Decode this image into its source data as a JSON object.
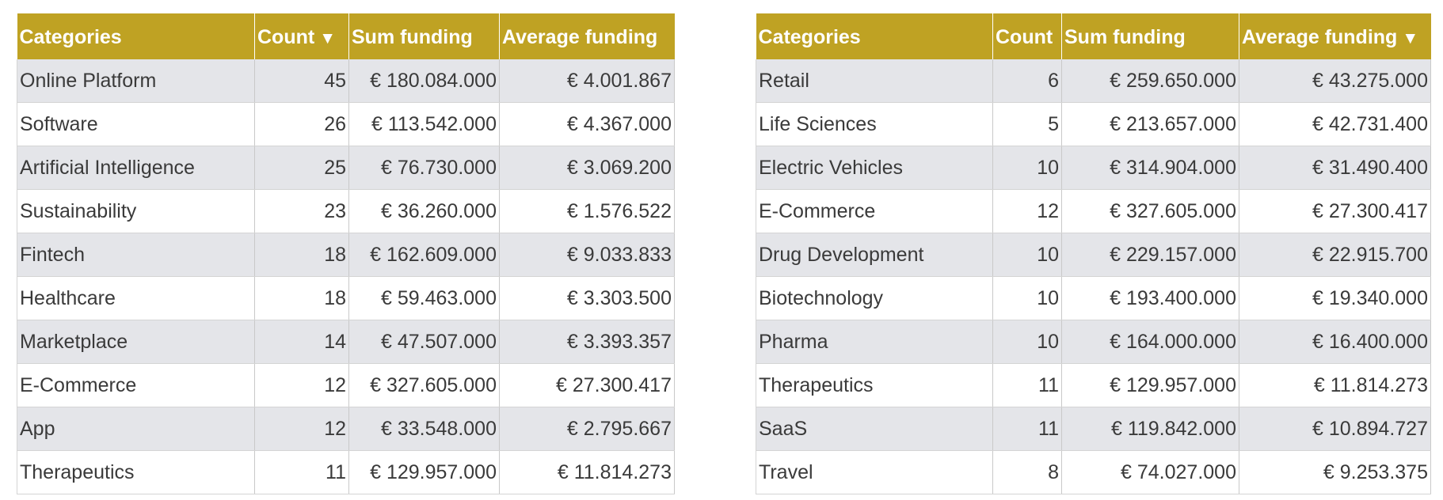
{
  "chart_data": [
    {
      "type": "table",
      "columns": [
        "Categories",
        "Count",
        "Sum funding",
        "Average funding"
      ],
      "sorted_by": "Count",
      "sort_indicator": "▼",
      "rows": [
        [
          "Online Platform",
          "45",
          "€ 180.084.000",
          "€ 4.001.867"
        ],
        [
          "Software",
          "26",
          "€ 113.542.000",
          "€ 4.367.000"
        ],
        [
          "Artificial Intelligence",
          "25",
          "€ 76.730.000",
          "€ 3.069.200"
        ],
        [
          "Sustainability",
          "23",
          "€ 36.260.000",
          "€ 1.576.522"
        ],
        [
          "Fintech",
          "18",
          "€ 162.609.000",
          "€ 9.033.833"
        ],
        [
          "Healthcare",
          "18",
          "€ 59.463.000",
          "€ 3.303.500"
        ],
        [
          "Marketplace",
          "14",
          "€ 47.507.000",
          "€ 3.393.357"
        ],
        [
          "E-Commerce",
          "12",
          "€ 327.605.000",
          "€ 27.300.417"
        ],
        [
          "App",
          "12",
          "€ 33.548.000",
          "€ 2.795.667"
        ],
        [
          "Therapeutics",
          "11",
          "€ 129.957.000",
          "€ 11.814.273"
        ]
      ]
    },
    {
      "type": "table",
      "columns": [
        "Categories",
        "Count",
        "Sum funding",
        "Average funding"
      ],
      "sorted_by": "Average funding",
      "sort_indicator": "▼",
      "rows": [
        [
          "Retail",
          "6",
          "€ 259.650.000",
          "€ 43.275.000"
        ],
        [
          "Life Sciences",
          "5",
          "€ 213.657.000",
          "€ 42.731.400"
        ],
        [
          "Electric Vehicles",
          "10",
          "€ 314.904.000",
          "€ 31.490.400"
        ],
        [
          "E-Commerce",
          "12",
          "€ 327.605.000",
          "€ 27.300.417"
        ],
        [
          "Drug Development",
          "10",
          "€ 229.157.000",
          "€ 22.915.700"
        ],
        [
          "Biotechnology",
          "10",
          "€ 193.400.000",
          "€ 19.340.000"
        ],
        [
          "Pharma",
          "10",
          "€ 164.000.000",
          "€ 16.400.000"
        ],
        [
          "Therapeutics",
          "11",
          "€ 129.957.000",
          "€ 11.814.273"
        ],
        [
          "SaaS",
          "11",
          "€ 119.842.000",
          "€ 10.894.727"
        ],
        [
          "Travel",
          "8",
          "€ 74.027.000",
          "€ 9.253.375"
        ]
      ]
    }
  ]
}
